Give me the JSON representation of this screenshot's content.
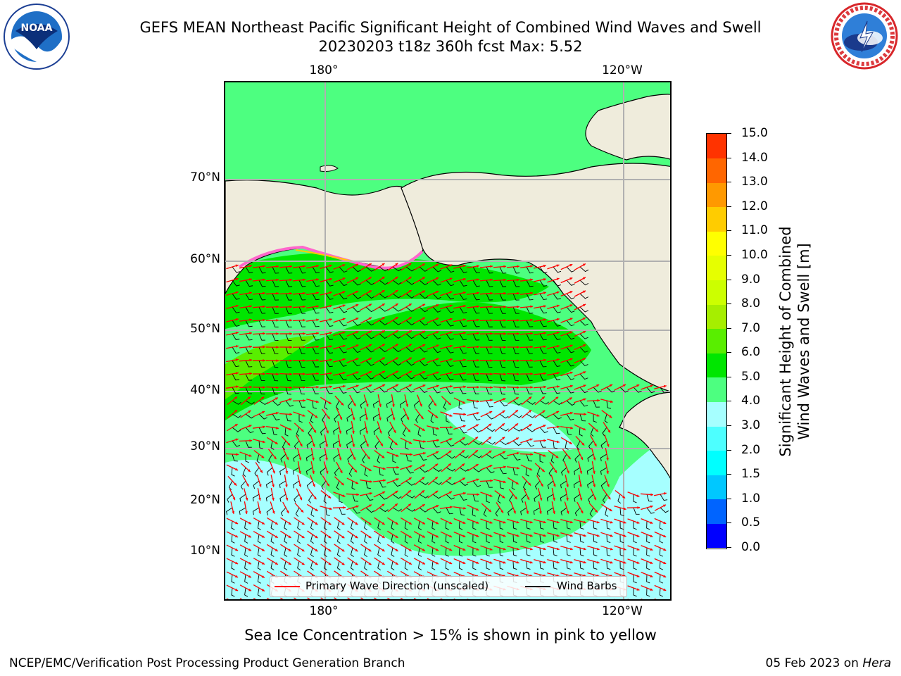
{
  "title": {
    "line1": "GEFS MEAN Northeast Pacific Significant Height of Combined Wind Waves and Swell",
    "line2": "20230203 t18z 360h fcst   Max: 5.52"
  },
  "map": {
    "lon_labels_top": [
      "180°",
      "120°W"
    ],
    "lon_labels_bottom": [
      "180°",
      "120°W"
    ],
    "lat_labels": [
      "70°N",
      "60°N",
      "50°N",
      "40°N",
      "30°N",
      "20°N",
      "10°N"
    ],
    "colors": {
      "land": "#efecdc",
      "ocean_low": "#a6ffff",
      "ocean_mid": "#4dff80",
      "ocean_high": "#00e600",
      "ocean_peak": "#59ee00",
      "grid": "#b0b0b0",
      "wave_arrow": "#ff0000",
      "wind_barb": "#000000"
    },
    "legend": {
      "wave_label": "Primary Wave Direction (unscaled)",
      "wind_label": "Wind Barbs"
    }
  },
  "colorbar": {
    "label_line1": "Significant Height of Combined",
    "label_line2": "Wind Waves and Swell [m]",
    "ticks": [
      "0.0",
      "0.5",
      "1.0",
      "1.5",
      "2.0",
      "3.0",
      "4.0",
      "5.0",
      "6.0",
      "7.0",
      "8.0",
      "9.0",
      "10.0",
      "11.0",
      "12.0",
      "13.0",
      "14.0",
      "15.0"
    ],
    "colors": [
      "#0000ff",
      "#0064ff",
      "#00c8ff",
      "#00ffff",
      "#4dffff",
      "#a6ffff",
      "#4dff80",
      "#00e600",
      "#59ee00",
      "#a6ee00",
      "#ccff00",
      "#e6ff00",
      "#ffff00",
      "#ffcc00",
      "#ff9900",
      "#ff6600",
      "#ff3300",
      "#ff0000"
    ]
  },
  "logos": {
    "noaa": "NOAA",
    "noaa_ring": "NATIONAL OCEANIC AND ATMOSPHERIC ADMINISTRATION • U.S. DEPARTMENT OF COMMERCE",
    "nws_ring": "NATIONAL WEATHER SERVICE"
  },
  "note": "Sea Ice Concentration > 15% is shown in pink to yellow",
  "footer": {
    "left": "NCEP/EMC/Verification Post Processing Product Generation Branch",
    "right_date": "05 Feb 2023 on ",
    "right_host": "Hera"
  }
}
